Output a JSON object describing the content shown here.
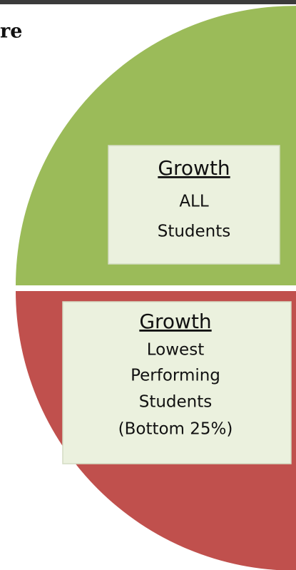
{
  "title": "re",
  "segments": [
    {
      "heading": "Growth",
      "lines": [
        "ALL",
        "Students"
      ]
    },
    {
      "heading": "Growth",
      "lines": [
        "Lowest",
        "Performing",
        "Students",
        "(Bottom 25%)"
      ]
    }
  ]
}
